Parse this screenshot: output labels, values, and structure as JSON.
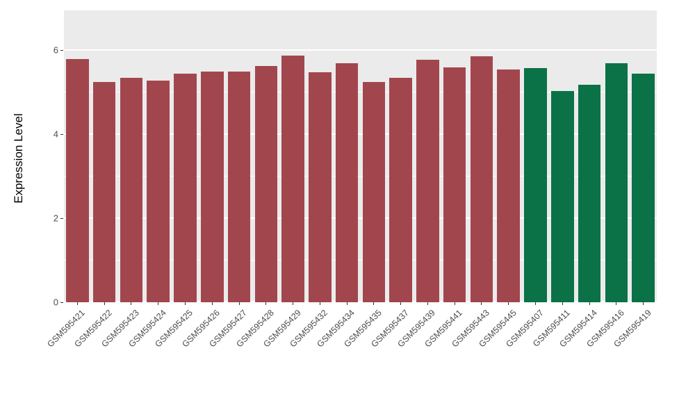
{
  "chart_data": {
    "type": "bar",
    "ylabel": "Expression Level",
    "ylim": [
      0,
      6.95
    ],
    "yticks": [
      0,
      2,
      4,
      6
    ],
    "minor_gridlines": [
      1,
      3,
      5
    ],
    "panel_background": "#EBEBEB",
    "gridline_color": "#FFFFFF",
    "axis_text_color": "#4D4D4D",
    "legend": "none",
    "categories": [
      "GSM595421",
      "GSM595422",
      "GSM595423",
      "GSM595424",
      "GSM595425",
      "GSM595426",
      "GSM595427",
      "GSM595428",
      "GSM595429",
      "GSM595432",
      "GSM595434",
      "GSM595435",
      "GSM595437",
      "GSM595439",
      "GSM595441",
      "GSM595443",
      "GSM595445",
      "GSM595407",
      "GSM595411",
      "GSM595414",
      "GSM595416",
      "GSM595419"
    ],
    "values": [
      5.8,
      5.25,
      5.35,
      5.28,
      5.45,
      5.5,
      5.5,
      5.62,
      5.88,
      5.47,
      5.7,
      5.25,
      5.35,
      5.77,
      5.6,
      5.85,
      5.55,
      5.58,
      5.03,
      5.18,
      5.7,
      5.45
    ],
    "groups": [
      "groupA",
      "groupA",
      "groupA",
      "groupA",
      "groupA",
      "groupA",
      "groupA",
      "groupA",
      "groupA",
      "groupA",
      "groupA",
      "groupA",
      "groupA",
      "groupA",
      "groupA",
      "groupA",
      "groupA",
      "groupB",
      "groupB",
      "groupB",
      "groupB",
      "groupB"
    ],
    "group_colors": {
      "groupA": "#A2464E",
      "groupB": "#0B7147"
    }
  }
}
